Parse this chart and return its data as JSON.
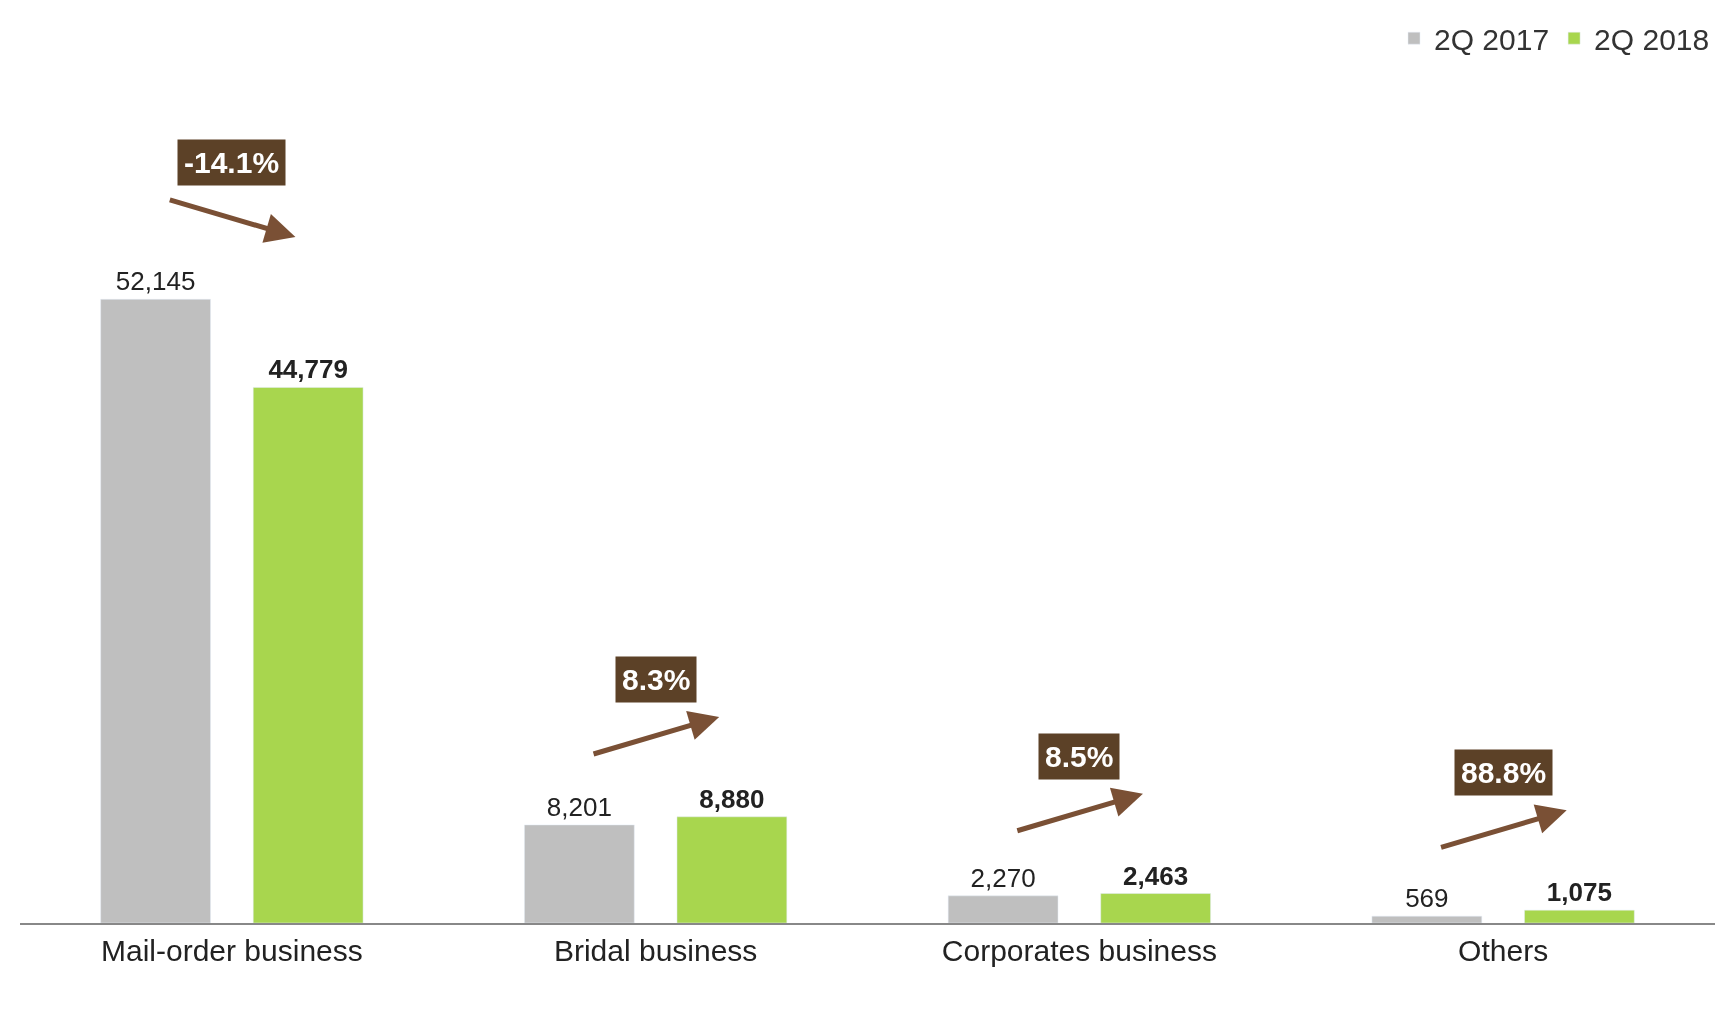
{
  "chart_data": {
    "type": "bar",
    "categories": [
      "Mail-order business",
      "Bridal business",
      "Corporates business",
      "Others"
    ],
    "series": [
      {
        "name": "2Q 2017",
        "color": "#bfbfbf",
        "values": [
          52145,
          8201,
          2270,
          569
        ],
        "value_labels": [
          "52,145",
          "8,201",
          "2,270",
          "569"
        ]
      },
      {
        "name": "2Q 2018",
        "color": "#a8d64e",
        "values": [
          44779,
          8880,
          2463,
          1075
        ],
        "value_labels": [
          "44,779",
          "8,880",
          "2,463",
          "1,075"
        ]
      }
    ],
    "annotations": [
      "-14.1%",
      "8.3%",
      "8.5%",
      "88.8%"
    ],
    "legend": "top right"
  }
}
